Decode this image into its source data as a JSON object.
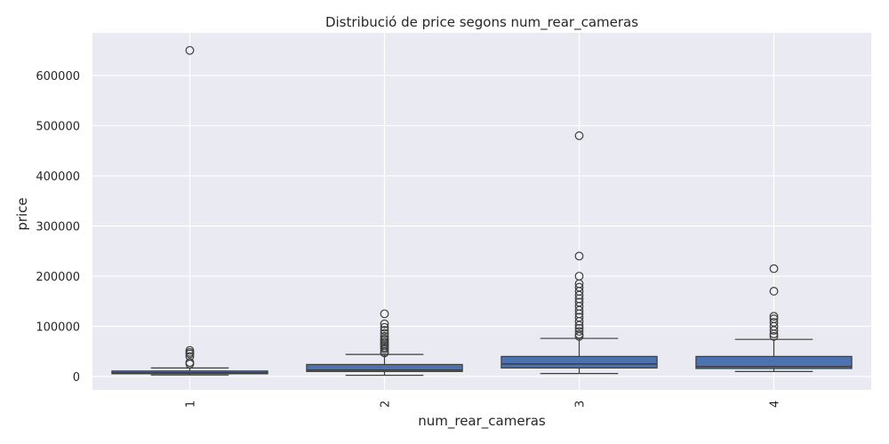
{
  "chart_data": {
    "type": "box",
    "title": "Distribució de price segons num_rear_cameras",
    "xlabel": "num_rear_cameras",
    "ylabel": "price",
    "categories": [
      "1",
      "2",
      "3",
      "4"
    ],
    "ylim": [
      -25000,
      680000
    ],
    "yticks": [
      0,
      100000,
      200000,
      300000,
      400000,
      500000,
      600000
    ],
    "ytick_labels": [
      "0",
      "100000",
      "200000",
      "300000",
      "400000",
      "500000",
      "600000"
    ],
    "grid": true,
    "box_color": "#4c72b0",
    "background": "#eaeaf2",
    "boxes": [
      {
        "category": "1",
        "whisker_low": 3000,
        "q1": 5500,
        "median": 7500,
        "q3": 11000,
        "whisker_high": 17000,
        "outliers": [
          650000,
          52000,
          48000,
          45000,
          40000,
          28000,
          25000
        ]
      },
      {
        "category": "2",
        "whisker_low": 2500,
        "q1": 10000,
        "median": 13000,
        "q3": 24000,
        "whisker_high": 44000,
        "outliers": [
          125000,
          105000,
          98000,
          92000,
          86000,
          80000,
          75000,
          72000,
          68000,
          65000,
          62000,
          58000,
          55000,
          50000,
          47000
        ]
      },
      {
        "category": "3",
        "whisker_low": 6000,
        "q1": 17000,
        "median": 25000,
        "q3": 40000,
        "whisker_high": 76000,
        "outliers": [
          480000,
          240000,
          200000,
          185000,
          178000,
          170000,
          162000,
          155000,
          148000,
          140000,
          132000,
          125000,
          118000,
          110000,
          102000,
          96000,
          90000,
          84000,
          80000
        ]
      },
      {
        "category": "4",
        "whisker_low": 10000,
        "q1": 16000,
        "median": 20000,
        "q3": 40000,
        "whisker_high": 74000,
        "outliers": [
          215000,
          170000,
          120000,
          115000,
          108000,
          100000,
          92000,
          85000,
          80000
        ]
      }
    ]
  }
}
